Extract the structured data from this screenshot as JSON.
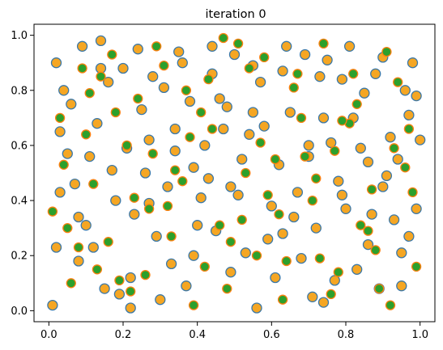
{
  "chart_data": {
    "type": "scatter",
    "title": "iteration 0",
    "xlabel": "",
    "ylabel": "",
    "xlim": [
      -0.04,
      1.04
    ],
    "ylim": [
      -0.04,
      1.04
    ],
    "xticks": [
      0.0,
      0.2,
      0.4,
      0.6,
      0.8,
      1.0
    ],
    "yticks": [
      0.0,
      0.2,
      0.4,
      0.6,
      0.8,
      1.0
    ],
    "xtick_labels": [
      "0.0",
      "0.2",
      "0.4",
      "0.6",
      "0.8",
      "1.0"
    ],
    "ytick_labels": [
      "0.0",
      "0.2",
      "0.4",
      "0.6",
      "0.8",
      "1.0"
    ],
    "grid": false,
    "legend": "none",
    "colors": {
      "orange_fill": "#f5a623",
      "blue_edge": "#3b78a8",
      "green_fill": "#2ca02c",
      "orange_edge": "#ff7f0e"
    },
    "series": [
      {
        "marker": "orange-circle-blue-edge",
        "x": [
          0.02,
          0.06,
          0.11,
          0.14,
          0.2,
          0.27,
          0.31,
          0.35,
          0.41,
          0.46,
          0.52,
          0.57,
          0.63,
          0.69,
          0.74,
          0.78,
          0.83,
          0.88,
          0.93,
          0.98,
          0.03,
          0.08,
          0.13,
          0.18,
          0.24,
          0.29,
          0.34,
          0.39,
          0.44,
          0.49,
          0.55,
          0.6,
          0.65,
          0.71,
          0.76,
          0.81,
          0.86,
          0.91,
          0.96,
          0.99,
          0.01,
          0.05,
          0.1,
          0.16,
          0.22,
          0.26,
          0.32,
          0.37,
          0.42,
          0.48,
          0.53,
          0.58,
          0.64,
          0.67,
          0.72,
          0.79,
          0.84,
          0.89,
          0.94,
          0.97,
          0.04,
          0.09,
          0.12,
          0.19,
          0.23,
          0.28,
          0.33,
          0.38,
          0.45,
          0.5,
          0.54,
          0.61,
          0.66,
          0.7,
          0.75,
          0.8,
          0.85,
          0.9,
          0.95,
          1.0,
          0.02,
          0.07,
          0.15,
          0.21,
          0.25,
          0.3,
          0.36,
          0.4,
          0.43,
          0.47,
          0.51,
          0.56,
          0.62,
          0.68,
          0.73,
          0.77,
          0.82,
          0.87,
          0.92,
          0.97,
          0.03,
          0.08,
          0.14,
          0.17,
          0.22,
          0.27,
          0.34,
          0.39,
          0.44,
          0.49,
          0.55,
          0.59,
          0.63,
          0.7,
          0.74,
          0.79,
          0.86,
          0.9,
          0.95,
          0.99
        ],
        "y": [
          0.9,
          0.75,
          0.56,
          0.98,
          0.88,
          0.62,
          0.81,
          0.94,
          0.41,
          0.77,
          0.55,
          0.83,
          0.28,
          0.93,
          0.7,
          0.47,
          0.15,
          0.86,
          0.33,
          0.9,
          0.43,
          0.18,
          0.68,
          0.4,
          0.95,
          0.27,
          0.66,
          0.52,
          0.86,
          0.14,
          0.89,
          0.38,
          0.72,
          0.05,
          0.61,
          0.96,
          0.24,
          0.49,
          0.8,
          0.37,
          0.02,
          0.57,
          0.31,
          0.83,
          0.12,
          0.5,
          0.45,
          0.09,
          0.6,
          0.74,
          0.21,
          0.67,
          0.96,
          0.43,
          0.3,
          0.84,
          0.59,
          0.08,
          0.55,
          0.71,
          0.8,
          0.96,
          0.23,
          0.06,
          0.35,
          0.85,
          0.17,
          0.76,
          0.29,
          0.93,
          0.64,
          0.12,
          0.34,
          0.56,
          0.91,
          0.37,
          0.79,
          0.45,
          0.21,
          0.62,
          0.23,
          0.46,
          0.08,
          0.59,
          0.73,
          0.04,
          0.9,
          0.31,
          0.48,
          0.66,
          0.42,
          0.01,
          0.53,
          0.19,
          0.85,
          0.11,
          0.7,
          0.35,
          0.63,
          0.27,
          0.65,
          0.34,
          0.88,
          0.51,
          0.01,
          0.39,
          0.58,
          0.2,
          0.96,
          0.45,
          0.72,
          0.26,
          0.87,
          0.6,
          0.03,
          0.42,
          0.54,
          0.92,
          0.09,
          0.78
        ]
      },
      {
        "marker": "green-circle-orange-edge",
        "x": [
          0.04,
          0.09,
          0.13,
          0.18,
          0.23,
          0.29,
          0.33,
          0.38,
          0.43,
          0.48,
          0.53,
          0.58,
          0.62,
          0.68,
          0.73,
          0.77,
          0.82,
          0.87,
          0.92,
          0.97,
          0.01,
          0.06,
          0.11,
          0.16,
          0.21,
          0.26,
          0.31,
          0.36,
          0.41,
          0.46,
          0.51,
          0.56,
          0.61,
          0.66,
          0.71,
          0.76,
          0.81,
          0.86,
          0.91,
          0.96,
          0.03,
          0.08,
          0.12,
          0.17,
          0.22,
          0.28,
          0.32,
          0.37,
          0.42,
          0.47,
          0.52,
          0.57,
          0.63,
          0.67,
          0.72,
          0.78,
          0.83,
          0.88,
          0.93,
          0.98,
          0.05,
          0.1,
          0.14,
          0.19,
          0.24,
          0.27,
          0.34,
          0.39,
          0.44,
          0.49,
          0.54,
          0.59,
          0.64,
          0.69,
          0.74,
          0.79,
          0.84,
          0.89,
          0.94,
          0.99
        ],
        "y": [
          0.53,
          0.88,
          0.15,
          0.72,
          0.41,
          0.96,
          0.27,
          0.63,
          0.84,
          0.08,
          0.5,
          0.92,
          0.35,
          0.7,
          0.19,
          0.58,
          0.86,
          0.44,
          0.02,
          0.66,
          0.36,
          0.1,
          0.79,
          0.25,
          0.6,
          0.13,
          0.89,
          0.47,
          0.72,
          0.31,
          0.97,
          0.2,
          0.55,
          0.81,
          0.4,
          0.06,
          0.68,
          0.29,
          0.94,
          0.52,
          0.7,
          0.23,
          0.46,
          0.93,
          0.07,
          0.57,
          0.38,
          0.8,
          0.16,
          0.99,
          0.33,
          0.61,
          0.04,
          0.86,
          0.48,
          0.14,
          0.75,
          0.22,
          0.59,
          0.43,
          0.3,
          0.64,
          0.85,
          0.11,
          0.77,
          0.37,
          0.51,
          0.02,
          0.66,
          0.25,
          0.88,
          0.42,
          0.18,
          0.56,
          0.97,
          0.69,
          0.31,
          0.08,
          0.83,
          0.16
        ]
      }
    ]
  }
}
